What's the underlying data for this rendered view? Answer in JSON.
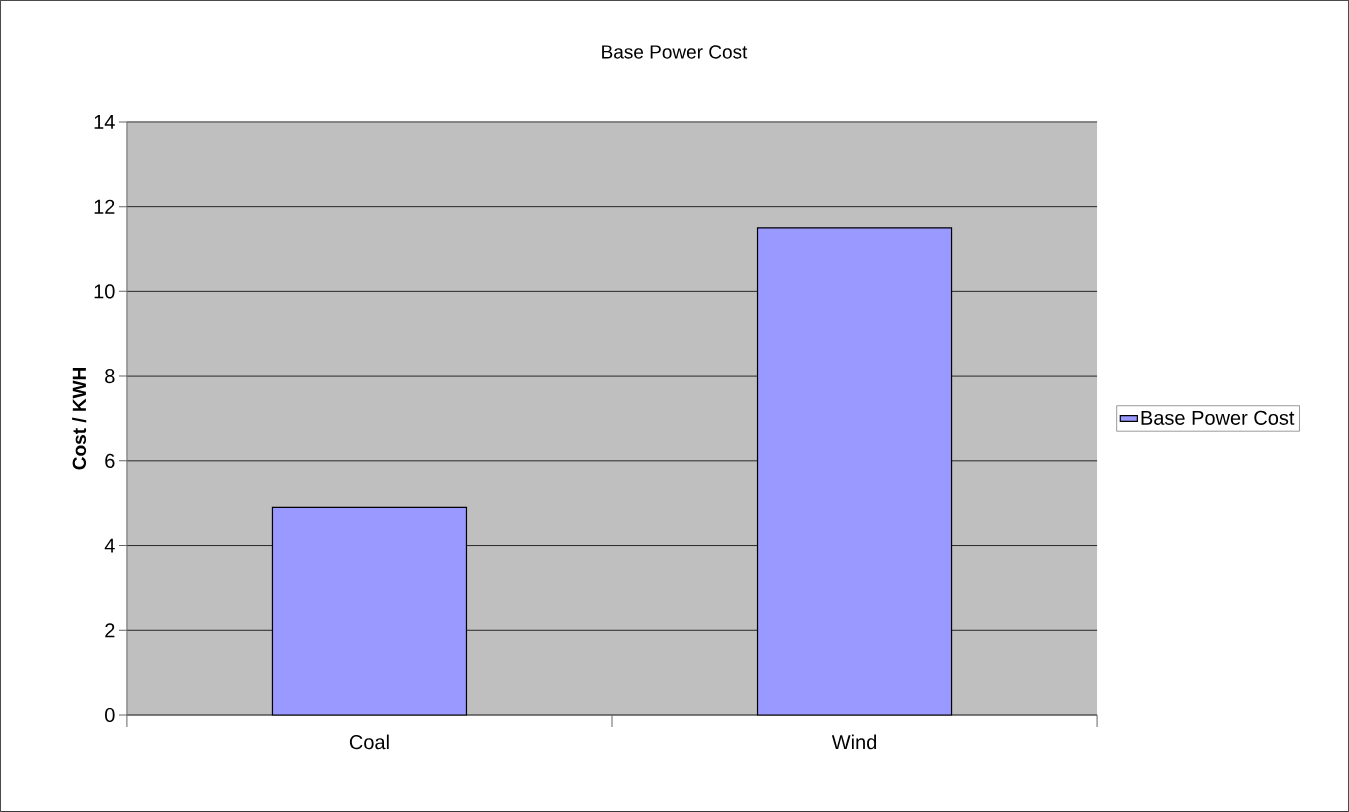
{
  "chart_data": {
    "type": "bar",
    "title": "Base Power Cost",
    "ylabel": "Cost / KWH",
    "categories": [
      "Coal",
      "Wind"
    ],
    "series": [
      {
        "name": "Base Power Cost",
        "color": "#9999ff",
        "values": [
          4.9,
          11.5
        ]
      }
    ],
    "ylim": [
      0,
      14
    ],
    "yticks": [
      0,
      2,
      4,
      6,
      8,
      10,
      12,
      14
    ],
    "grid": "y",
    "legend": "right"
  }
}
